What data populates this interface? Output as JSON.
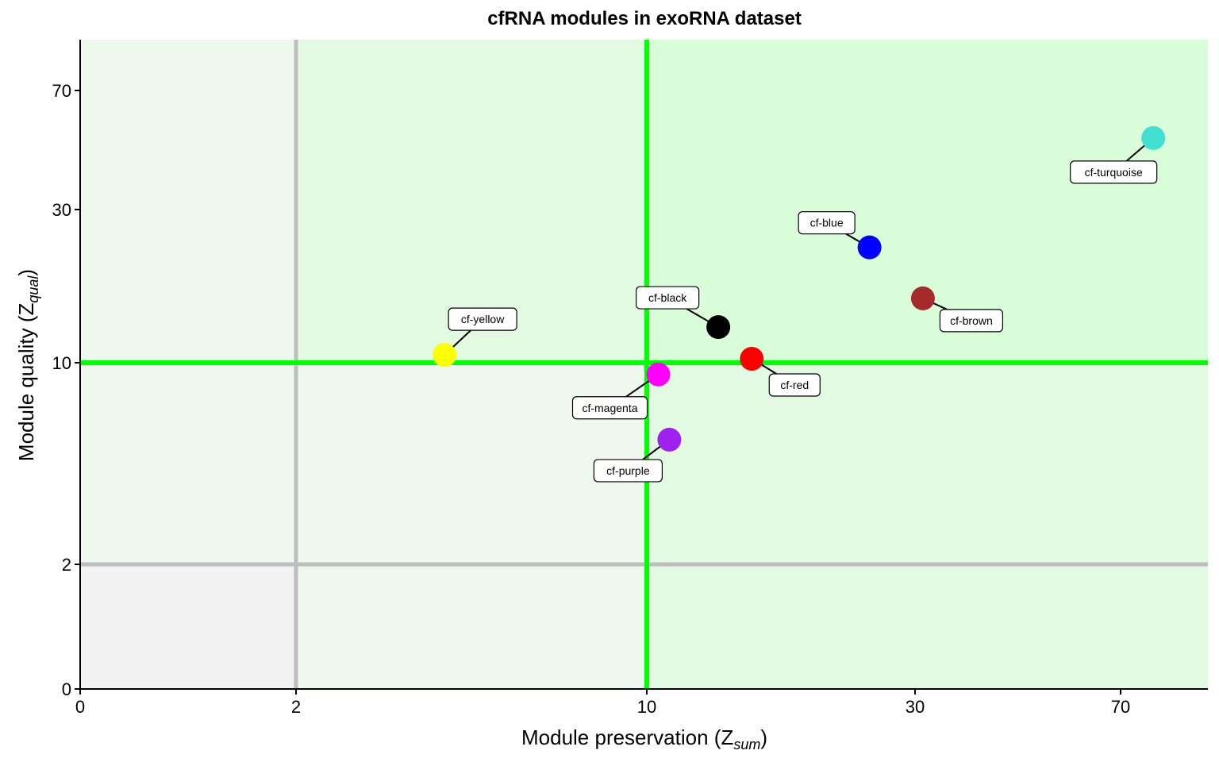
{
  "chart_data": {
    "type": "scatter",
    "title": "cfRNA modules in exoRNA dataset",
    "xlabel": {
      "main": "Module preservation (Z",
      "sub": "sum",
      "close": ")"
    },
    "ylabel": {
      "main": "Module quality (Z",
      "sub": "qual",
      "close": ")"
    },
    "x_scale": "pseudo-log",
    "y_scale": "pseudo-log",
    "xlim": [
      0,
      100
    ],
    "ylim": [
      0,
      100
    ],
    "x_ticks": [
      0,
      2,
      10,
      30,
      70
    ],
    "y_ticks": [
      0,
      2,
      10,
      30,
      70
    ],
    "x_tick_labels": [
      "0",
      "2",
      "10",
      "30",
      "70"
    ],
    "y_tick_labels": [
      "0",
      "2",
      "10",
      "30",
      "70"
    ],
    "thresholds": {
      "grey": {
        "x": 2,
        "y": 2,
        "color": "#bebebe"
      },
      "green": {
        "x": 10,
        "y": 10,
        "color": "#00ff00"
      }
    },
    "regions": {
      "low_low": "#f2f2f2",
      "mid": "#eef8ee",
      "mid_high": "#e2fae2",
      "high_high": "#d9fdd9"
    },
    "points": [
      {
        "label": "cf-turquoise",
        "x": 80,
        "y": 50,
        "color": "#40e0d0"
      },
      {
        "label": "cf-blue",
        "x": 25,
        "y": 23,
        "color": "#0000ff"
      },
      {
        "label": "cf-brown",
        "x": 31,
        "y": 16,
        "color": "#a52a2a"
      },
      {
        "label": "cf-black",
        "x": 13.5,
        "y": 13,
        "color": "#000000"
      },
      {
        "label": "cf-red",
        "x": 15.5,
        "y": 10.3,
        "color": "#ff0000"
      },
      {
        "label": "cf-yellow",
        "x": 4.2,
        "y": 10.6,
        "color": "#ffff00"
      },
      {
        "label": "cf-magenta",
        "x": 10.5,
        "y": 9.2,
        "color": "#ff00ff"
      },
      {
        "label": "cf-purple",
        "x": 11,
        "y": 5.7,
        "color": "#a020f0"
      }
    ]
  }
}
